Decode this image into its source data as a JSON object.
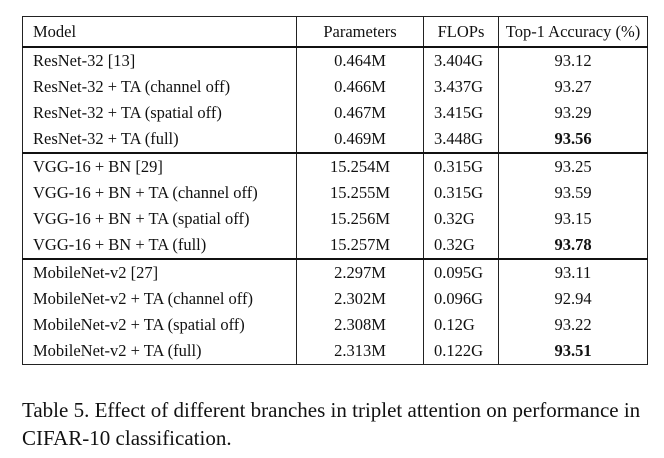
{
  "table": {
    "headers": [
      "Model",
      "Parameters",
      "FLOPs",
      "Top-1 Accuracy (%)"
    ],
    "groups": [
      {
        "rows": [
          {
            "model": "ResNet-32 [13]",
            "params": "0.464M",
            "flops": "3.404G",
            "acc": "93.12",
            "best": false
          },
          {
            "model": "ResNet-32 + TA (channel off)",
            "params": "0.466M",
            "flops": "3.437G",
            "acc": "93.27",
            "best": false
          },
          {
            "model": "ResNet-32 + TA (spatial off)",
            "params": "0.467M",
            "flops": "3.415G",
            "acc": "93.29",
            "best": false
          },
          {
            "model": "ResNet-32 + TA (full)",
            "params": "0.469M",
            "flops": "3.448G",
            "acc": "93.56",
            "best": true
          }
        ]
      },
      {
        "rows": [
          {
            "model": "VGG-16 + BN [29]",
            "params": "15.254M",
            "flops": "0.315G",
            "acc": "93.25",
            "best": false
          },
          {
            "model": "VGG-16 + BN + TA (channel off)",
            "params": "15.255M",
            "flops": "0.315G",
            "acc": "93.59",
            "best": false
          },
          {
            "model": "VGG-16 + BN + TA (spatial off)",
            "params": "15.256M",
            "flops": "0.32G",
            "acc": "93.15",
            "best": false
          },
          {
            "model": "VGG-16 + BN + TA (full)",
            "params": "15.257M",
            "flops": "0.32G",
            "acc": "93.78",
            "best": true
          }
        ]
      },
      {
        "rows": [
          {
            "model": "MobileNet-v2 [27]",
            "params": "2.297M",
            "flops": "0.095G",
            "acc": "93.11",
            "best": false
          },
          {
            "model": "MobileNet-v2 + TA (channel off)",
            "params": "2.302M",
            "flops": "0.096G",
            "acc": "92.94",
            "best": false
          },
          {
            "model": "MobileNet-v2 + TA (spatial off)",
            "params": "2.308M",
            "flops": "0.12G",
            "acc": "93.22",
            "best": false
          },
          {
            "model": "MobileNet-v2 + TA (full)",
            "params": "2.313M",
            "flops": "0.122G",
            "acc": "93.51",
            "best": true
          }
        ]
      }
    ]
  },
  "caption": "Table 5. Effect of different branches in triplet attention on performance in CIFAR-10 classification."
}
